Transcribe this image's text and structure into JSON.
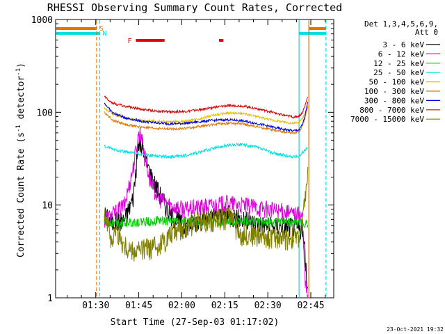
{
  "chart_data": {
    "type": "line",
    "title": "RHESSI Observing Summary Count Rates, Corrected",
    "xlabel": "Start Time (27-Sep-03 01:17:02)",
    "ylabel": "Corrected Count Rate (s",
    "ylabel_sup1": "-1",
    "ylabel_mid": " detector",
    "ylabel_sup2": "-1",
    "ylabel_end": ")",
    "yscale": "log",
    "ylim": [
      1,
      1000
    ],
    "xlim_minutes": [
      0,
      97
    ],
    "x_ticks": [
      {
        "min": 14,
        "label": "01:30"
      },
      {
        "min": 29,
        "label": "01:45"
      },
      {
        "min": 44,
        "label": "02:00"
      },
      {
        "min": 59,
        "label": "02:15"
      },
      {
        "min": 74,
        "label": "02:30"
      },
      {
        "min": 89,
        "label": "02:45"
      }
    ],
    "y_ticks": [
      {
        "v": 1,
        "label": "1"
      },
      {
        "v": 10,
        "label": "10"
      },
      {
        "v": 100,
        "label": "100"
      },
      {
        "v": 1000,
        "label": "1000"
      }
    ],
    "legend_header": [
      "Det 1,3,4,5,6,9,",
      "Att 0"
    ],
    "legend_position": "top-right",
    "series": [
      {
        "name": "3 - 6 keV",
        "color": "#000000",
        "x": [
          17,
          20,
          24,
          27,
          29,
          31,
          33,
          36,
          40,
          45,
          50,
          55,
          60,
          65,
          70,
          75,
          80,
          83,
          85,
          86,
          87,
          88
        ],
        "y": [
          8,
          6.5,
          7,
          12,
          48,
          35,
          22,
          14,
          8,
          6,
          7,
          7.5,
          8,
          7,
          6.5,
          6,
          6,
          6,
          5.5,
          5.5,
          3,
          1
        ]
      },
      {
        "name": "6 - 12 keV",
        "color": "#e000e0",
        "x": [
          17,
          20,
          24,
          27,
          29,
          30,
          31,
          33,
          36,
          40,
          45,
          50,
          55,
          60,
          65,
          70,
          75,
          80,
          83,
          85,
          86,
          87,
          88
        ],
        "y": [
          7,
          8,
          10,
          25,
          60,
          58,
          35,
          18,
          12,
          10,
          9,
          9.5,
          10,
          10.5,
          10,
          9.5,
          9,
          8.5,
          8,
          8,
          7.5,
          1.5,
          1
        ]
      },
      {
        "name": "12 - 25 keV",
        "color": "#00d000",
        "x": [
          17,
          20,
          25,
          30,
          35,
          40,
          45,
          50,
          55,
          60,
          65,
          70,
          75,
          80,
          85,
          87,
          88
        ],
        "y": [
          6.8,
          6.5,
          6.5,
          6.6,
          6.8,
          6.8,
          6.6,
          6.5,
          6.6,
          6.7,
          6.8,
          6.6,
          6.5,
          6.6,
          6.5,
          6.5,
          6.5
        ]
      },
      {
        "name": "25 - 50 keV",
        "color": "#00e0e0",
        "x": [
          17,
          20,
          25,
          30,
          35,
          40,
          45,
          50,
          55,
          60,
          65,
          70,
          75,
          80,
          83,
          85,
          86,
          87,
          88
        ],
        "y": [
          43,
          40,
          37,
          35,
          34,
          33,
          34,
          37,
          41,
          44,
          45,
          42,
          37,
          34,
          33,
          34,
          36,
          40,
          41
        ]
      },
      {
        "name": "50 - 100 keV",
        "color": "#e0c000",
        "x": [
          17,
          20,
          25,
          30,
          35,
          40,
          45,
          50,
          55,
          60,
          65,
          70,
          75,
          80,
          83,
          85,
          86,
          87,
          88
        ],
        "y": [
          110,
          95,
          86,
          82,
          80,
          79,
          80,
          85,
          93,
          98,
          97,
          90,
          83,
          78,
          76,
          78,
          85,
          98,
          120
        ]
      },
      {
        "name": "100 - 300 keV",
        "color": "#e07800",
        "x": [
          17,
          20,
          25,
          30,
          35,
          40,
          45,
          50,
          55,
          60,
          65,
          70,
          75,
          80,
          83,
          85,
          86,
          87,
          88
        ],
        "y": [
          100,
          82,
          73,
          69,
          67,
          66,
          67,
          70,
          74,
          76,
          75,
          70,
          65,
          61,
          60,
          62,
          70,
          88,
          120
        ]
      },
      {
        "name": "300 - 800 keV",
        "color": "#0000e0",
        "x": [
          17,
          20,
          25,
          30,
          35,
          40,
          45,
          50,
          55,
          60,
          65,
          70,
          75,
          80,
          83,
          85,
          86,
          87,
          88
        ],
        "y": [
          125,
          98,
          86,
          80,
          77,
          75,
          76,
          79,
          82,
          83,
          81,
          76,
          70,
          65,
          63,
          65,
          73,
          92,
          130
        ]
      },
      {
        "name": "800 - 7000 keV",
        "color": "#e00000",
        "x": [
          17,
          20,
          25,
          30,
          35,
          40,
          45,
          50,
          55,
          60,
          65,
          70,
          75,
          80,
          83,
          85,
          86,
          87,
          88
        ],
        "y": [
          148,
          125,
          115,
          108,
          103,
          101,
          102,
          106,
          113,
          118,
          117,
          110,
          101,
          92,
          89,
          91,
          99,
          118,
          150
        ]
      },
      {
        "name": "7000 - 15000 keV",
        "color": "#808000",
        "x": [
          17,
          19,
          20,
          21,
          23,
          25,
          27,
          30,
          33,
          35,
          38,
          40,
          42,
          45,
          50,
          55,
          60,
          62,
          63,
          65,
          70,
          75,
          80,
          85,
          86,
          87,
          88
        ],
        "y": [
          9,
          5,
          4.2,
          5.5,
          4,
          3.5,
          3.2,
          3.3,
          3.5,
          3.6,
          4.2,
          5,
          5.5,
          6,
          6.8,
          7,
          7.5,
          8,
          5.5,
          5,
          4.8,
          4.6,
          4.5,
          4.5,
          6,
          12,
          22
        ]
      }
    ],
    "vertical_lines": [
      {
        "min": 14.3,
        "color": "#e07800",
        "style": "dashed"
      },
      {
        "min": 15.4,
        "color": "#00e0e0",
        "style": "dashed"
      },
      {
        "min": 84.9,
        "color": "#00e0e0",
        "style": "solid"
      },
      {
        "min": 88.3,
        "color": "#e07800",
        "style": "solid"
      },
      {
        "min": 94.3,
        "color": "#00e0e0",
        "style": "dashed"
      }
    ],
    "status_bars": [
      {
        "label": "S",
        "color": "#e07800",
        "segments": [
          [
            0,
            14.3
          ],
          [
            88.3,
            94.3
          ]
        ]
      },
      {
        "label": "N",
        "color": "#00e0e0",
        "segments": [
          [
            0,
            15.4
          ],
          [
            84.9,
            94.3
          ]
        ]
      },
      {
        "label": "F",
        "color": "#e00000",
        "segments": [
          [
            28,
            38
          ],
          [
            57,
            58.5
          ]
        ]
      }
    ],
    "footer_date": "23-Oct-2021 19:32"
  }
}
